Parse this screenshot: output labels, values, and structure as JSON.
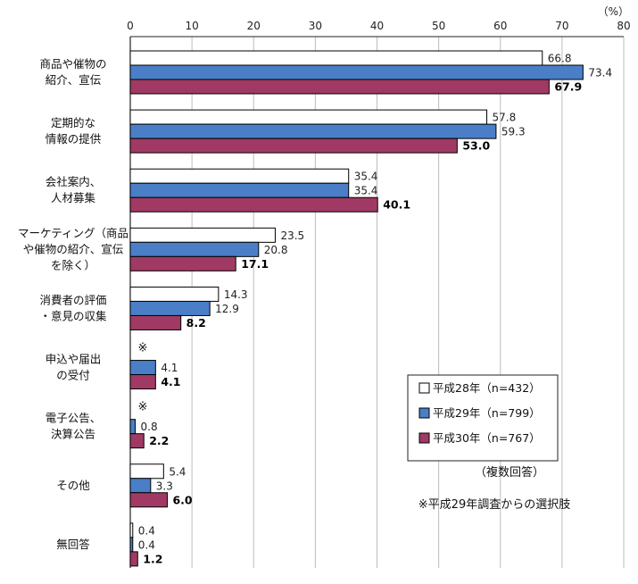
{
  "chart_data": {
    "type": "bar",
    "orientation": "horizontal",
    "unit_label": "（%）",
    "xlim": [
      0,
      80
    ],
    "xticks": [
      "0",
      "10",
      "20",
      "30",
      "40",
      "50",
      "60",
      "70",
      "80"
    ],
    "categories": [
      [
        "商品や催物の",
        "紹介、宣伝"
      ],
      [
        "定期的な",
        "情報の提供"
      ],
      [
        "会社案内、",
        "人材募集"
      ],
      [
        "マーケティング（商品",
        "や催物の紹介、宣伝",
        "を除く）"
      ],
      [
        "消費者の評価",
        "・意見の収集"
      ],
      [
        "申込や届出",
        "の受付"
      ],
      [
        "電子公告、",
        "決算公告"
      ],
      [
        "その他"
      ],
      [
        "無回答"
      ]
    ],
    "series": [
      {
        "name": "平成28年（n=432）",
        "color": "#ffffff",
        "values": [
          66.8,
          57.8,
          35.4,
          23.5,
          14.3,
          null,
          null,
          5.4,
          0.4
        ],
        "labels": [
          "66.8",
          "57.8",
          "35.4",
          "23.5",
          "14.3",
          "",
          "",
          "5.4",
          "0.4"
        ],
        "bold": false
      },
      {
        "name": "平成29年（n=799）",
        "color": "#4a7fc8",
        "values": [
          73.4,
          59.3,
          35.4,
          20.8,
          12.9,
          4.1,
          0.8,
          3.3,
          0.4
        ],
        "labels": [
          "73.4",
          "59.3",
          "35.4",
          "20.8",
          "12.9",
          "4.1",
          "0.8",
          "3.3",
          "0.4"
        ],
        "bold": false
      },
      {
        "name": "平成30年（n=767）",
        "color": "#a03a64",
        "values": [
          67.9,
          53.0,
          40.1,
          17.1,
          8.2,
          4.1,
          2.2,
          6.0,
          1.2
        ],
        "labels": [
          "67.9",
          "53.0",
          "40.1",
          "17.1",
          "8.2",
          "4.1",
          "2.2",
          "6.0",
          "1.2"
        ],
        "bold": true
      }
    ],
    "new_option_marks": [
      "",
      "",
      "",
      "",
      "",
      "※",
      "※",
      "",
      ""
    ],
    "notes": {
      "multiple": "（複数回答）",
      "new_option": "※平成29年調査からの選択肢"
    },
    "legend_position": "right"
  }
}
